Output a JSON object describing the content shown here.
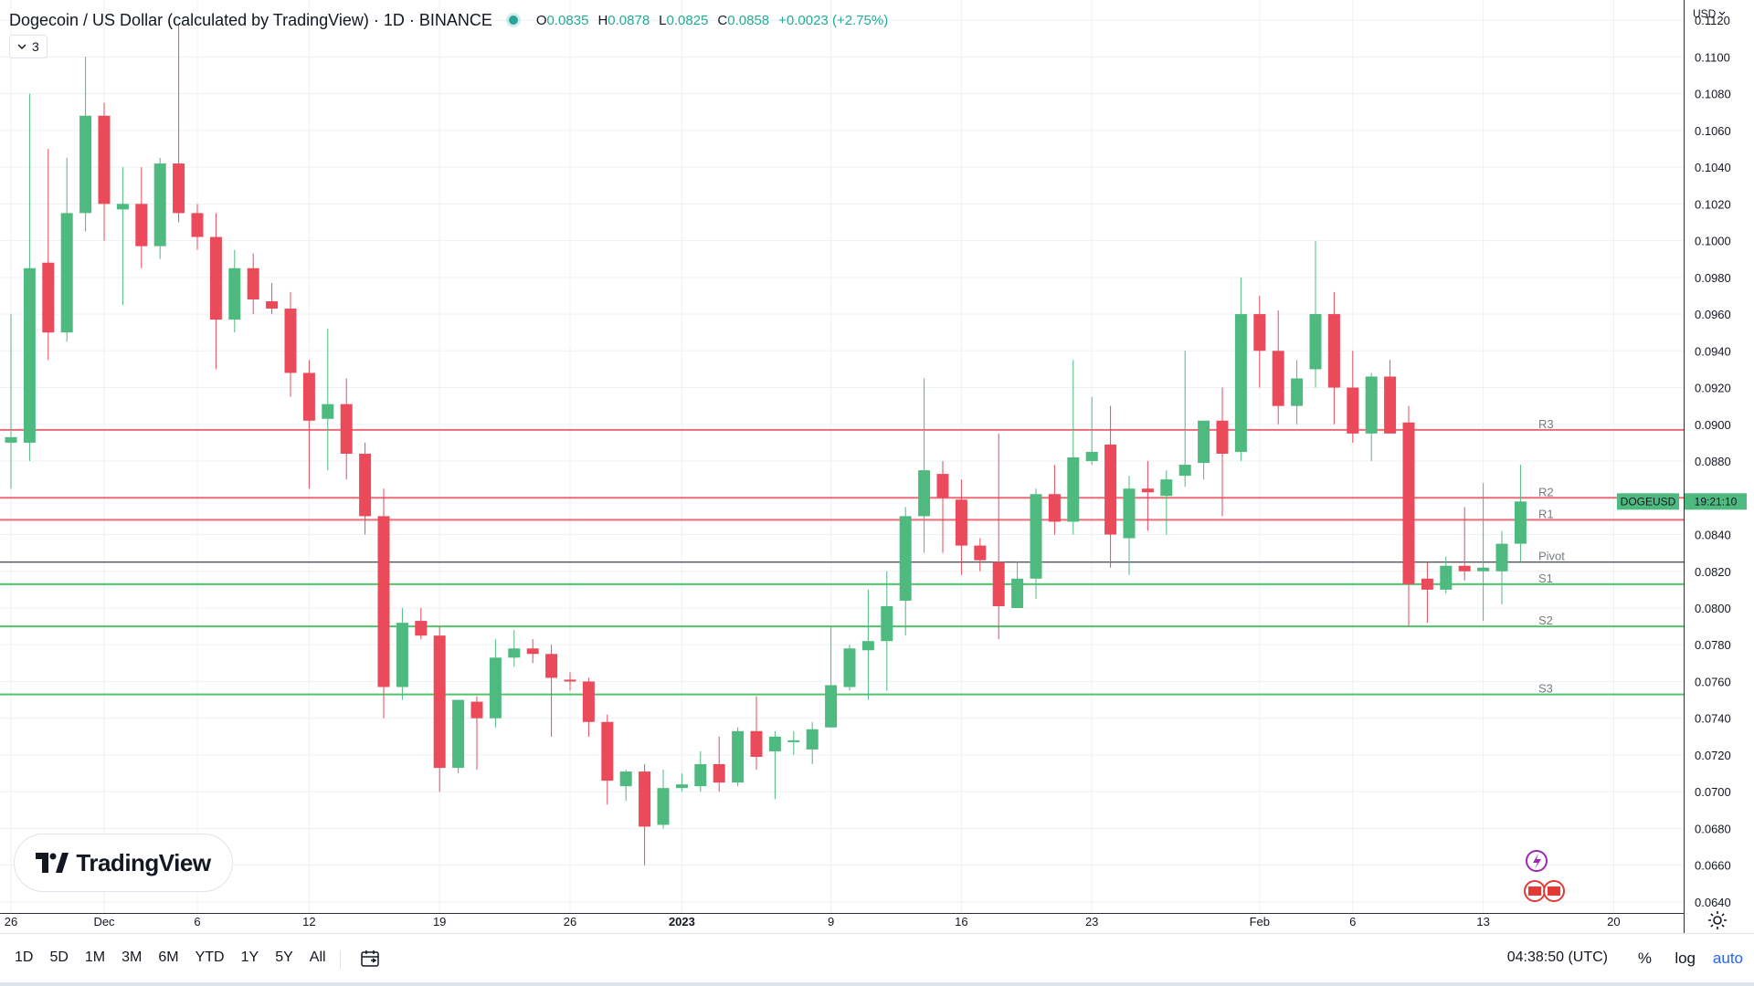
{
  "header": {
    "title": "Dogecoin / US Dollar (calculated by TradingView) · 1D · BINANCE",
    "ohlc": [
      {
        "k": "O",
        "v": "0.0835"
      },
      {
        "k": "H",
        "v": "0.0878"
      },
      {
        "k": "L",
        "v": "0.0825"
      },
      {
        "k": "C",
        "v": "0.0858"
      }
    ],
    "change": "+0.0023 (+2.75%)",
    "collapse_count": "3"
  },
  "price_axis": {
    "currency": "USD"
  },
  "last_price": {
    "symbol": "DOGEUSD",
    "time": "19:21:10"
  },
  "logo": {
    "text": "TradingView"
  },
  "bottom": {
    "ranges": [
      "1D",
      "5D",
      "1M",
      "3M",
      "6M",
      "YTD",
      "1Y",
      "5Y",
      "All"
    ],
    "clock": "04:38:50 (UTC)",
    "percent": "%",
    "log": "log",
    "auto": "auto"
  },
  "colors": {
    "up": "#4fba7f",
    "down": "#ea4a5a",
    "resistance": "#ea6c78",
    "support": "#4fc46a",
    "pivot": "#131722",
    "grid": "#eef1f5"
  },
  "chart_data": {
    "type": "candlestick",
    "symbol": "DOGEUSD",
    "ylim": [
      0.0634,
      0.1131
    ],
    "yticks": [
      0.064,
      0.066,
      0.068,
      0.07,
      0.072,
      0.074,
      0.076,
      0.078,
      0.08,
      0.082,
      0.084,
      0.086,
      0.088,
      0.09,
      0.092,
      0.094,
      0.096,
      0.098,
      0.1,
      0.102,
      0.104,
      0.106,
      0.108,
      0.11,
      0.112
    ],
    "ytick_labels": [
      "0.0640",
      "0.0660",
      "0.0680",
      "0.0700",
      "0.0720",
      "0.0740",
      "0.0760",
      "0.0780",
      "0.0800",
      "0.0820",
      "0.0840",
      "0.0860",
      "0.0880",
      "0.0900",
      "0.0920",
      "0.0940",
      "0.0960",
      "0.0980",
      "0.1000",
      "0.1020",
      "0.1040",
      "0.1060",
      "0.1080",
      "0.1100",
      "0.1120"
    ],
    "xlim": [
      "2022-11-26",
      "2023-02-21"
    ],
    "xticks": [
      {
        "date": "2022-11-26",
        "label": "26"
      },
      {
        "date": "2022-12-01",
        "label": "Dec"
      },
      {
        "date": "2022-12-06",
        "label": "6"
      },
      {
        "date": "2022-12-12",
        "label": "12"
      },
      {
        "date": "2022-12-19",
        "label": "19"
      },
      {
        "date": "2022-12-26",
        "label": "26"
      },
      {
        "date": "2023-01-01",
        "label": "2023"
      },
      {
        "date": "2023-01-09",
        "label": "9"
      },
      {
        "date": "2023-01-16",
        "label": "16"
      },
      {
        "date": "2023-01-23",
        "label": "23"
      },
      {
        "date": "2023-02-01",
        "label": "Feb"
      },
      {
        "date": "2023-02-06",
        "label": "6"
      },
      {
        "date": "2023-02-13",
        "label": "13"
      },
      {
        "date": "2023-02-20",
        "label": "20"
      }
    ],
    "columns": [
      "date",
      "open",
      "high",
      "low",
      "close"
    ],
    "candles": [
      [
        "2022-11-26",
        0.089,
        0.096,
        0.0865,
        0.0893
      ],
      [
        "2022-11-27",
        0.089,
        0.108,
        0.088,
        0.0985
      ],
      [
        "2022-11-28",
        0.0988,
        0.105,
        0.0935,
        0.095
      ],
      [
        "2022-11-29",
        0.095,
        0.1045,
        0.0945,
        0.1015
      ],
      [
        "2022-11-30",
        0.1015,
        0.11,
        0.1005,
        0.1068
      ],
      [
        "2022-12-01",
        0.1068,
        0.1075,
        0.1,
        0.102
      ],
      [
        "2022-12-02",
        0.1017,
        0.104,
        0.0965,
        0.102
      ],
      [
        "2022-12-03",
        0.102,
        0.104,
        0.0985,
        0.0997
      ],
      [
        "2022-12-04",
        0.0997,
        0.1045,
        0.099,
        0.1042
      ],
      [
        "2022-12-05",
        0.1042,
        0.1118,
        0.101,
        0.1015
      ],
      [
        "2022-12-06",
        0.1015,
        0.102,
        0.0995,
        0.1002
      ],
      [
        "2022-12-07",
        0.1002,
        0.1015,
        0.093,
        0.0957
      ],
      [
        "2022-12-08",
        0.0957,
        0.0995,
        0.095,
        0.0985
      ],
      [
        "2022-12-09",
        0.0985,
        0.0993,
        0.096,
        0.0968
      ],
      [
        "2022-12-10",
        0.0967,
        0.0977,
        0.096,
        0.0963
      ],
      [
        "2022-12-11",
        0.0963,
        0.0972,
        0.0915,
        0.0928
      ],
      [
        "2022-12-12",
        0.0928,
        0.0935,
        0.0865,
        0.0902
      ],
      [
        "2022-12-13",
        0.0903,
        0.0952,
        0.0875,
        0.0911
      ],
      [
        "2022-12-14",
        0.0911,
        0.0925,
        0.087,
        0.0884
      ],
      [
        "2022-12-15",
        0.0884,
        0.089,
        0.084,
        0.085
      ],
      [
        "2022-12-16",
        0.085,
        0.0865,
        0.074,
        0.0757
      ],
      [
        "2022-12-17",
        0.0757,
        0.08,
        0.075,
        0.0792
      ],
      [
        "2022-12-18",
        0.0793,
        0.08,
        0.0783,
        0.0785
      ],
      [
        "2022-12-19",
        0.0785,
        0.079,
        0.07,
        0.0713
      ],
      [
        "2022-12-20",
        0.0713,
        0.075,
        0.071,
        0.075
      ],
      [
        "2022-12-21",
        0.0749,
        0.0752,
        0.0712,
        0.074
      ],
      [
        "2022-12-22",
        0.074,
        0.0783,
        0.0735,
        0.0773
      ],
      [
        "2022-12-23",
        0.0773,
        0.0788,
        0.0768,
        0.0778
      ],
      [
        "2022-12-24",
        0.0778,
        0.0783,
        0.077,
        0.0775
      ],
      [
        "2022-12-25",
        0.0775,
        0.078,
        0.073,
        0.0762
      ],
      [
        "2022-12-26",
        0.0761,
        0.0765,
        0.0755,
        0.076
      ],
      [
        "2022-12-27",
        0.076,
        0.0762,
        0.073,
        0.0738
      ],
      [
        "2022-12-28",
        0.0738,
        0.0742,
        0.0693,
        0.0706
      ],
      [
        "2022-12-29",
        0.0703,
        0.0712,
        0.0695,
        0.0711
      ],
      [
        "2022-12-30",
        0.0711,
        0.0715,
        0.066,
        0.0681
      ],
      [
        "2022-12-31",
        0.0682,
        0.0712,
        0.068,
        0.0702
      ],
      [
        "2023-01-01",
        0.0702,
        0.071,
        0.07,
        0.0704
      ],
      [
        "2023-01-02",
        0.0703,
        0.0722,
        0.07,
        0.0715
      ],
      [
        "2023-01-03",
        0.0715,
        0.073,
        0.07,
        0.0705
      ],
      [
        "2023-01-04",
        0.0705,
        0.0735,
        0.0703,
        0.0733
      ],
      [
        "2023-01-05",
        0.0733,
        0.0752,
        0.0712,
        0.0719
      ],
      [
        "2023-01-06",
        0.0722,
        0.0733,
        0.0696,
        0.073
      ],
      [
        "2023-01-07",
        0.0727,
        0.0733,
        0.072,
        0.0728
      ],
      [
        "2023-01-08",
        0.0723,
        0.0738,
        0.0715,
        0.0734
      ],
      [
        "2023-01-09",
        0.0735,
        0.079,
        0.0735,
        0.0758
      ],
      [
        "2023-01-10",
        0.0757,
        0.078,
        0.0755,
        0.0778
      ],
      [
        "2023-01-11",
        0.0777,
        0.081,
        0.075,
        0.0782
      ],
      [
        "2023-01-12",
        0.0782,
        0.082,
        0.0755,
        0.0801
      ],
      [
        "2023-01-13",
        0.0804,
        0.0855,
        0.0785,
        0.085
      ],
      [
        "2023-01-14",
        0.085,
        0.0925,
        0.083,
        0.0875
      ],
      [
        "2023-01-15",
        0.0873,
        0.088,
        0.083,
        0.086
      ],
      [
        "2023-01-16",
        0.0859,
        0.087,
        0.0818,
        0.0834
      ],
      [
        "2023-01-17",
        0.0834,
        0.0838,
        0.082,
        0.0826
      ],
      [
        "2023-01-18",
        0.0825,
        0.0895,
        0.0783,
        0.0801
      ],
      [
        "2023-01-19",
        0.08,
        0.0825,
        0.08,
        0.0816
      ],
      [
        "2023-01-20",
        0.0816,
        0.0865,
        0.0805,
        0.0862
      ],
      [
        "2023-01-21",
        0.0862,
        0.0878,
        0.084,
        0.0847
      ],
      [
        "2023-01-22",
        0.0847,
        0.0935,
        0.084,
        0.0882
      ],
      [
        "2023-01-23",
        0.088,
        0.0915,
        0.0878,
        0.0885
      ],
      [
        "2023-01-24",
        0.0889,
        0.091,
        0.0822,
        0.084
      ],
      [
        "2023-01-25",
        0.0838,
        0.0872,
        0.0818,
        0.0865
      ],
      [
        "2023-01-26",
        0.0865,
        0.088,
        0.0842,
        0.0863
      ],
      [
        "2023-01-27",
        0.0861,
        0.0875,
        0.084,
        0.087
      ],
      [
        "2023-01-28",
        0.0872,
        0.094,
        0.0866,
        0.0878
      ],
      [
        "2023-01-29",
        0.0879,
        0.09,
        0.087,
        0.0902
      ],
      [
        "2023-01-30",
        0.0902,
        0.092,
        0.085,
        0.0884
      ],
      [
        "2023-01-31",
        0.0885,
        0.098,
        0.088,
        0.096
      ],
      [
        "2023-02-01",
        0.096,
        0.097,
        0.092,
        0.094
      ],
      [
        "2023-02-02",
        0.094,
        0.0962,
        0.09,
        0.091
      ],
      [
        "2023-02-03",
        0.091,
        0.0935,
        0.09,
        0.0925
      ],
      [
        "2023-02-04",
        0.093,
        0.1,
        0.092,
        0.096
      ],
      [
        "2023-02-05",
        0.096,
        0.0972,
        0.09,
        0.092
      ],
      [
        "2023-02-06",
        0.092,
        0.094,
        0.089,
        0.0895
      ],
      [
        "2023-02-07",
        0.0895,
        0.0928,
        0.088,
        0.0926
      ],
      [
        "2023-02-08",
        0.0926,
        0.0935,
        0.0895,
        0.0895
      ],
      [
        "2023-02-09",
        0.0901,
        0.091,
        0.079,
        0.0813
      ],
      [
        "2023-02-10",
        0.0816,
        0.0825,
        0.0792,
        0.081
      ],
      [
        "2023-02-11",
        0.081,
        0.0828,
        0.0808,
        0.0823
      ],
      [
        "2023-02-12",
        0.0823,
        0.0855,
        0.0815,
        0.082
      ],
      [
        "2023-02-13",
        0.082,
        0.0868,
        0.0793,
        0.0822
      ],
      [
        "2023-02-14",
        0.082,
        0.0842,
        0.0802,
        0.0835
      ],
      [
        "2023-02-15",
        0.0835,
        0.0878,
        0.0825,
        0.0858
      ]
    ],
    "levels": [
      {
        "name": "R3",
        "value": 0.0897,
        "kind": "resistance"
      },
      {
        "name": "R2",
        "value": 0.086,
        "kind": "resistance"
      },
      {
        "name": "R1",
        "value": 0.0848,
        "kind": "resistance"
      },
      {
        "name": "Pivot",
        "value": 0.0825,
        "kind": "pivot"
      },
      {
        "name": "S1",
        "value": 0.0813,
        "kind": "support"
      },
      {
        "name": "S2",
        "value": 0.079,
        "kind": "support"
      },
      {
        "name": "S3",
        "value": 0.0753,
        "kind": "support"
      }
    ],
    "last_price": 0.0858
  }
}
